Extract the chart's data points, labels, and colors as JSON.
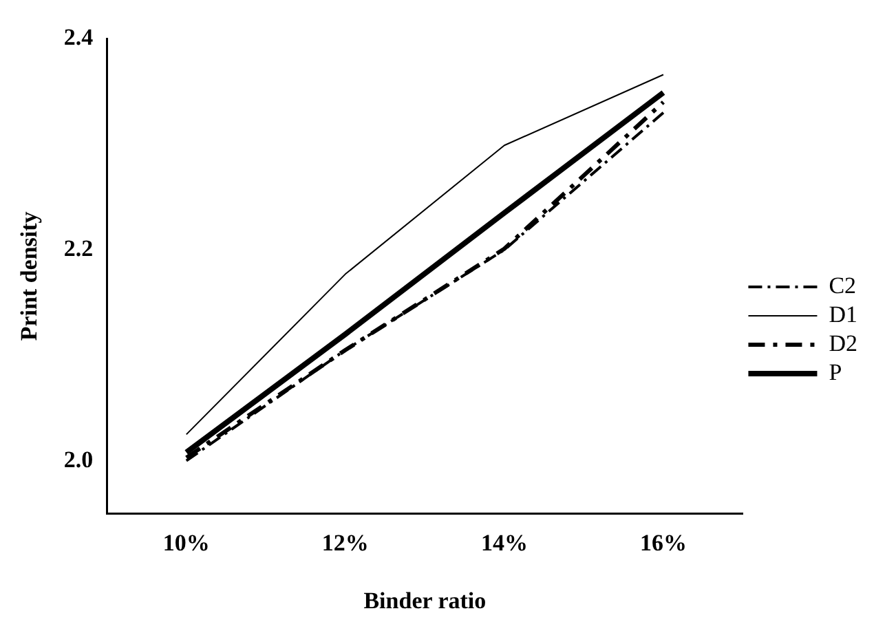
{
  "chart_data": {
    "type": "line",
    "xlabel": "Binder ratio",
    "ylabel": "Print density",
    "categories": [
      "10%",
      "12%",
      "14%",
      "16%"
    ],
    "series": [
      {
        "name": "C2",
        "color": "#000000",
        "line_style": "dashdot",
        "values": [
          2.0,
          2.105,
          2.2,
          2.33
        ]
      },
      {
        "name": "D1",
        "color": "#000000",
        "line_style": "solid",
        "values": [
          2.025,
          2.177,
          2.299,
          2.366
        ]
      },
      {
        "name": "D2",
        "color": "#000000",
        "line_style": "dashdot",
        "values": [
          2.003,
          2.105,
          2.201,
          2.34
        ]
      },
      {
        "name": "P",
        "color": "#000000",
        "line_style": "solid",
        "values": [
          2.008,
          2.12,
          2.235,
          2.349
        ]
      }
    ],
    "ylim": [
      1.95,
      2.4
    ],
    "yticks": [
      {
        "value": 2.0,
        "label": "2.0"
      },
      {
        "value": 2.2,
        "label": "2.2"
      },
      {
        "value": 2.4,
        "label": "2.4"
      }
    ],
    "grid": false,
    "legend": "right",
    "marker": "none"
  }
}
